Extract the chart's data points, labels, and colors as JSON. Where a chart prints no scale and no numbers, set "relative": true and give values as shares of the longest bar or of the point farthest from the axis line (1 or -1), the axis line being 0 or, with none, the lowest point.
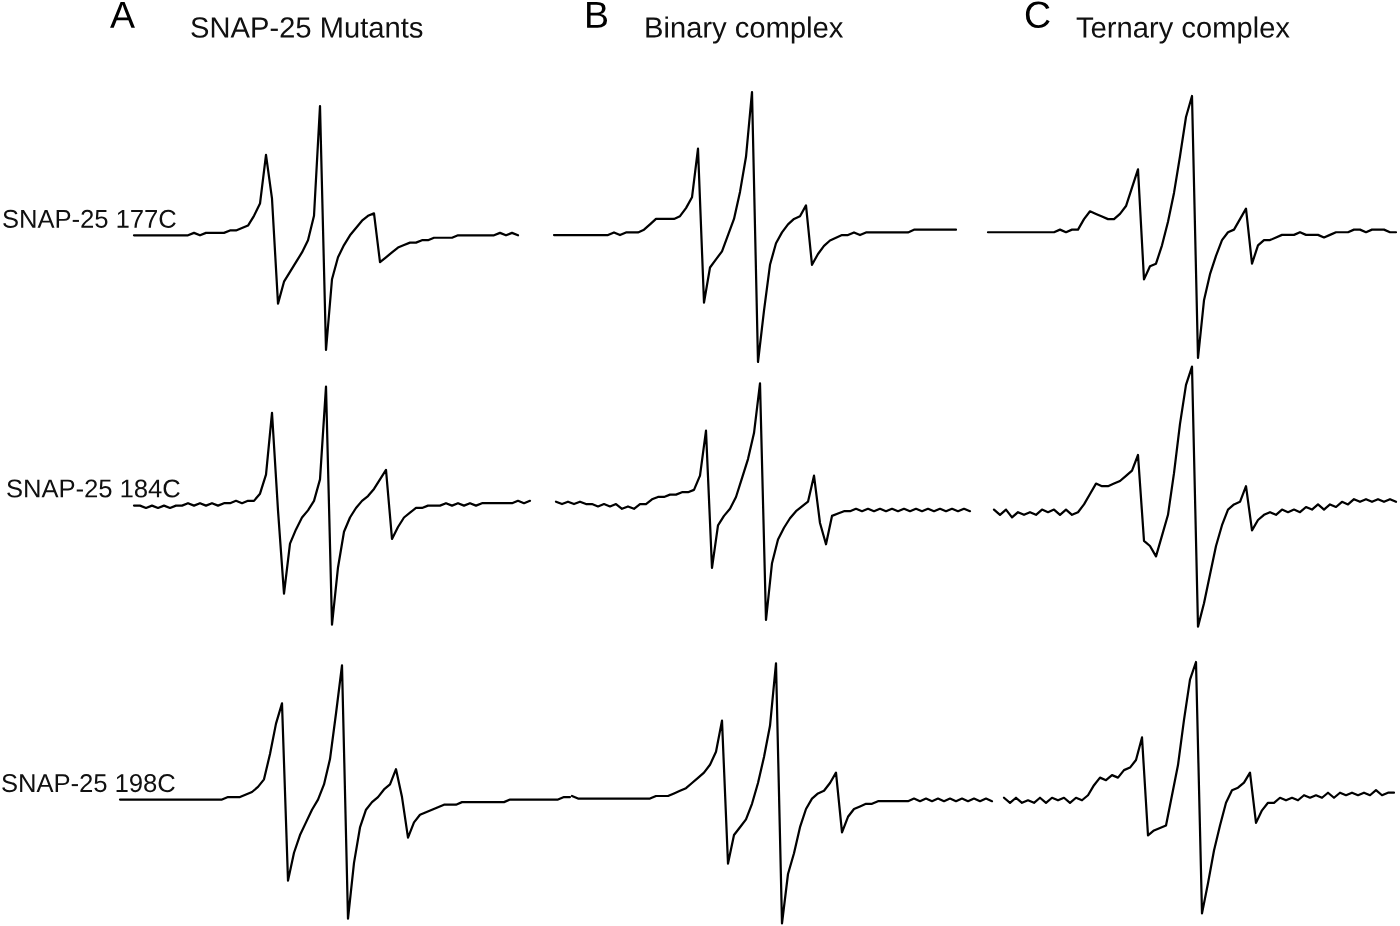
{
  "chart_data": [
    {
      "type": "line",
      "relative": true,
      "tick_labels": false,
      "title": "SNAP-25 Mutants",
      "annotations": [
        "A"
      ],
      "ylabel": "SNAP-25 177C",
      "color": "#000000",
      "categories": [
        null,
        null,
        null,
        null,
        null,
        null,
        null,
        null,
        null,
        null,
        null,
        null,
        null,
        null,
        null,
        null,
        null,
        null,
        null,
        null,
        null,
        null,
        null,
        null,
        null,
        null,
        null,
        null,
        null,
        null,
        null,
        null,
        null,
        null,
        null,
        null,
        null,
        null,
        null,
        null,
        null,
        null,
        null,
        null,
        null,
        null,
        null,
        null,
        null,
        null,
        null,
        null,
        null,
        null,
        null,
        null,
        null,
        null,
        null,
        null,
        null,
        null,
        null,
        null,
        null
      ],
      "values": [
        0.47,
        0.47,
        0.47,
        0.47,
        0.47,
        0.47,
        0.47,
        0.47,
        0.47,
        0.47,
        0.48,
        0.47,
        0.48,
        0.48,
        0.48,
        0.48,
        0.49,
        0.49,
        0.5,
        0.51,
        0.55,
        0.6,
        0.8,
        0.62,
        0.19,
        0.28,
        0.32,
        0.36,
        0.4,
        0.45,
        0.55,
        1.0,
        0.0,
        0.29,
        0.38,
        0.43,
        0.47,
        0.5,
        0.53,
        0.55,
        0.56,
        0.36,
        0.38,
        0.4,
        0.42,
        0.43,
        0.44,
        0.44,
        0.45,
        0.45,
        0.46,
        0.46,
        0.46,
        0.46,
        0.47,
        0.47,
        0.47,
        0.47,
        0.47,
        0.47,
        0.47,
        0.48,
        0.47,
        0.48,
        0.47
      ]
    },
    {
      "type": "line",
      "relative": true,
      "tick_labels": false,
      "title": "Binary complex",
      "annotations": [
        "B"
      ],
      "color": "#000000",
      "categories": [
        null,
        null,
        null,
        null,
        null,
        null,
        null,
        null,
        null,
        null,
        null,
        null,
        null,
        null,
        null,
        null,
        null,
        null,
        null,
        null,
        null,
        null,
        null,
        null,
        null,
        null,
        null,
        null,
        null,
        null,
        null,
        null,
        null,
        null,
        null,
        null,
        null,
        null,
        null,
        null,
        null,
        null,
        null,
        null,
        null,
        null,
        null,
        null,
        null,
        null,
        null,
        null,
        null,
        null,
        null,
        null,
        null,
        null,
        null,
        null,
        null,
        null,
        null,
        null,
        null,
        null,
        null,
        null
      ],
      "values": [
        0.47,
        0.47,
        0.47,
        0.47,
        0.47,
        0.47,
        0.47,
        0.47,
        0.47,
        0.47,
        0.48,
        0.47,
        0.48,
        0.48,
        0.48,
        0.49,
        0.51,
        0.53,
        0.53,
        0.53,
        0.53,
        0.54,
        0.57,
        0.61,
        0.79,
        0.22,
        0.35,
        0.38,
        0.41,
        0.47,
        0.53,
        0.63,
        0.76,
        1.0,
        0.0,
        0.19,
        0.36,
        0.44,
        0.48,
        0.51,
        0.53,
        0.54,
        0.58,
        0.36,
        0.4,
        0.43,
        0.45,
        0.46,
        0.47,
        0.47,
        0.48,
        0.47,
        0.48,
        0.48,
        0.48,
        0.48,
        0.48,
        0.48,
        0.48,
        0.48,
        0.49,
        0.49,
        0.49,
        0.49,
        0.49,
        0.49,
        0.49,
        0.49
      ]
    },
    {
      "type": "line",
      "relative": true,
      "tick_labels": false,
      "title": "Ternary complex",
      "annotations": [
        "C"
      ],
      "color": "#000000",
      "categories": [
        null,
        null,
        null,
        null,
        null,
        null,
        null,
        null,
        null,
        null,
        null,
        null,
        null,
        null,
        null,
        null,
        null,
        null,
        null,
        null,
        null,
        null,
        null,
        null,
        null,
        null,
        null,
        null,
        null,
        null,
        null,
        null,
        null,
        null,
        null,
        null,
        null,
        null,
        null,
        null,
        null,
        null,
        null,
        null,
        null,
        null,
        null,
        null,
        null,
        null,
        null,
        null,
        null,
        null,
        null,
        null,
        null,
        null,
        null,
        null,
        null,
        null,
        null,
        null,
        null,
        null,
        null,
        null,
        null
      ],
      "values": [
        0.48,
        0.48,
        0.48,
        0.48,
        0.48,
        0.48,
        0.48,
        0.48,
        0.48,
        0.48,
        0.48,
        0.48,
        0.49,
        0.48,
        0.49,
        0.49,
        0.53,
        0.56,
        0.55,
        0.54,
        0.53,
        0.53,
        0.55,
        0.58,
        0.65,
        0.72,
        0.3,
        0.35,
        0.36,
        0.43,
        0.52,
        0.63,
        0.77,
        0.92,
        1.0,
        0.0,
        0.22,
        0.32,
        0.39,
        0.45,
        0.48,
        0.49,
        0.53,
        0.57,
        0.36,
        0.43,
        0.45,
        0.45,
        0.46,
        0.47,
        0.47,
        0.47,
        0.48,
        0.47,
        0.47,
        0.47,
        0.46,
        0.47,
        0.48,
        0.48,
        0.48,
        0.49,
        0.49,
        0.48,
        0.49,
        0.49,
        0.49,
        0.48,
        0.48
      ]
    },
    {
      "type": "line",
      "relative": true,
      "tick_labels": false,
      "ylabel": "SNAP-25 184C",
      "color": "#000000",
      "categories": [
        null,
        null,
        null,
        null,
        null,
        null,
        null,
        null,
        null,
        null,
        null,
        null,
        null,
        null,
        null,
        null,
        null,
        null,
        null,
        null,
        null,
        null,
        null,
        null,
        null,
        null,
        null,
        null,
        null,
        null,
        null,
        null,
        null,
        null,
        null,
        null,
        null,
        null,
        null,
        null,
        null,
        null,
        null,
        null,
        null,
        null,
        null,
        null,
        null,
        null,
        null,
        null,
        null,
        null,
        null,
        null,
        null,
        null,
        null,
        null,
        null,
        null,
        null,
        null,
        null,
        null,
        null
      ],
      "values": [
        0.5,
        0.5,
        0.49,
        0.5,
        0.49,
        0.5,
        0.49,
        0.5,
        0.5,
        0.51,
        0.5,
        0.51,
        0.5,
        0.51,
        0.5,
        0.51,
        0.51,
        0.52,
        0.51,
        0.52,
        0.52,
        0.55,
        0.63,
        0.89,
        0.48,
        0.13,
        0.34,
        0.4,
        0.45,
        0.48,
        0.52,
        0.61,
        1.0,
        0.0,
        0.24,
        0.39,
        0.45,
        0.49,
        0.52,
        0.54,
        0.57,
        0.61,
        0.65,
        0.36,
        0.41,
        0.45,
        0.47,
        0.49,
        0.49,
        0.5,
        0.5,
        0.5,
        0.51,
        0.5,
        0.51,
        0.5,
        0.51,
        0.5,
        0.51,
        0.51,
        0.51,
        0.51,
        0.51,
        0.51,
        0.52,
        0.51,
        0.52
      ]
    },
    {
      "type": "line",
      "relative": true,
      "tick_labels": false,
      "color": "#000000",
      "categories": [
        null,
        null,
        null,
        null,
        null,
        null,
        null,
        null,
        null,
        null,
        null,
        null,
        null,
        null,
        null,
        null,
        null,
        null,
        null,
        null,
        null,
        null,
        null,
        null,
        null,
        null,
        null,
        null,
        null,
        null,
        null,
        null,
        null,
        null,
        null,
        null,
        null,
        null,
        null,
        null,
        null,
        null,
        null,
        null,
        null,
        null,
        null,
        null,
        null,
        null,
        null,
        null,
        null,
        null,
        null,
        null,
        null,
        null,
        null,
        null,
        null,
        null,
        null,
        null,
        null,
        null,
        null,
        null,
        null,
        null
      ],
      "values": [
        0.5,
        0.49,
        0.5,
        0.49,
        0.5,
        0.49,
        0.49,
        0.48,
        0.49,
        0.48,
        0.49,
        0.47,
        0.48,
        0.47,
        0.49,
        0.49,
        0.51,
        0.52,
        0.52,
        0.53,
        0.53,
        0.54,
        0.54,
        0.55,
        0.61,
        0.8,
        0.22,
        0.4,
        0.44,
        0.47,
        0.52,
        0.6,
        0.68,
        0.79,
        1.0,
        0.0,
        0.24,
        0.34,
        0.39,
        0.43,
        0.46,
        0.48,
        0.5,
        0.61,
        0.41,
        0.32,
        0.44,
        0.45,
        0.46,
        0.46,
        0.47,
        0.46,
        0.47,
        0.46,
        0.47,
        0.46,
        0.47,
        0.46,
        0.47,
        0.46,
        0.47,
        0.46,
        0.47,
        0.46,
        0.47,
        0.46,
        0.47,
        0.46,
        0.47,
        0.46
      ]
    },
    {
      "type": "line",
      "relative": true,
      "tick_labels": false,
      "color": "#000000",
      "categories": [
        null,
        null,
        null,
        null,
        null,
        null,
        null,
        null,
        null,
        null,
        null,
        null,
        null,
        null,
        null,
        null,
        null,
        null,
        null,
        null,
        null,
        null,
        null,
        null,
        null,
        null,
        null,
        null,
        null,
        null,
        null,
        null,
        null,
        null,
        null,
        null,
        null,
        null,
        null,
        null,
        null,
        null,
        null,
        null,
        null,
        null,
        null,
        null,
        null,
        null,
        null,
        null,
        null,
        null,
        null,
        null,
        null,
        null,
        null,
        null,
        null,
        null,
        null,
        null,
        null,
        null,
        null,
        null
      ],
      "values": [
        0.45,
        0.43,
        0.45,
        0.42,
        0.44,
        0.43,
        0.44,
        0.43,
        0.45,
        0.44,
        0.45,
        0.43,
        0.45,
        0.43,
        0.44,
        0.47,
        0.51,
        0.55,
        0.54,
        0.54,
        0.55,
        0.56,
        0.58,
        0.6,
        0.66,
        0.33,
        0.31,
        0.27,
        0.35,
        0.43,
        0.59,
        0.78,
        0.93,
        1.0,
        0.0,
        0.09,
        0.2,
        0.31,
        0.39,
        0.45,
        0.47,
        0.48,
        0.54,
        0.37,
        0.41,
        0.43,
        0.44,
        0.43,
        0.45,
        0.44,
        0.45,
        0.44,
        0.46,
        0.45,
        0.47,
        0.45,
        0.47,
        0.46,
        0.48,
        0.47,
        0.49,
        0.48,
        0.49,
        0.48,
        0.49,
        0.48,
        0.49,
        0.48
      ]
    },
    {
      "type": "line",
      "relative": true,
      "tick_labels": false,
      "ylabel": "SNAP-25 198C",
      "color": "#000000",
      "categories": [
        null,
        null,
        null,
        null,
        null,
        null,
        null,
        null,
        null,
        null,
        null,
        null,
        null,
        null,
        null,
        null,
        null,
        null,
        null,
        null,
        null,
        null,
        null,
        null,
        null,
        null,
        null,
        null,
        null,
        null,
        null,
        null,
        null,
        null,
        null,
        null,
        null,
        null,
        null,
        null,
        null,
        null,
        null,
        null,
        null,
        null,
        null,
        null,
        null,
        null,
        null,
        null,
        null,
        null,
        null,
        null,
        null,
        null,
        null,
        null,
        null,
        null,
        null,
        null,
        null,
        null,
        null,
        null,
        null,
        null,
        null,
        null,
        null,
        null,
        null,
        null
      ],
      "values": [
        0.47,
        0.47,
        0.47,
        0.47,
        0.47,
        0.47,
        0.47,
        0.47,
        0.47,
        0.47,
        0.47,
        0.47,
        0.47,
        0.47,
        0.47,
        0.47,
        0.47,
        0.47,
        0.48,
        0.48,
        0.48,
        0.49,
        0.5,
        0.52,
        0.55,
        0.65,
        0.77,
        0.85,
        0.15,
        0.26,
        0.33,
        0.38,
        0.43,
        0.47,
        0.53,
        0.63,
        0.81,
        1.0,
        0.0,
        0.22,
        0.36,
        0.43,
        0.46,
        0.48,
        0.51,
        0.53,
        0.59,
        0.48,
        0.32,
        0.38,
        0.41,
        0.42,
        0.43,
        0.44,
        0.45,
        0.45,
        0.45,
        0.46,
        0.46,
        0.46,
        0.46,
        0.46,
        0.46,
        0.46,
        0.46,
        0.47,
        0.47,
        0.47,
        0.47,
        0.47,
        0.47,
        0.47,
        0.47,
        0.47,
        0.48,
        0.48
      ]
    },
    {
      "type": "line",
      "relative": true,
      "tick_labels": false,
      "color": "#000000",
      "categories": [
        null,
        null,
        null,
        null,
        null,
        null,
        null,
        null,
        null,
        null,
        null,
        null,
        null,
        null,
        null,
        null,
        null,
        null,
        null,
        null,
        null,
        null,
        null,
        null,
        null,
        null,
        null,
        null,
        null,
        null,
        null,
        null,
        null,
        null,
        null,
        null,
        null,
        null,
        null,
        null,
        null,
        null,
        null,
        null,
        null,
        null,
        null,
        null,
        null,
        null,
        null,
        null,
        null,
        null,
        null,
        null,
        null,
        null,
        null,
        null,
        null,
        null,
        null,
        null,
        null,
        null,
        null,
        null,
        null,
        null,
        null
      ],
      "values": [
        0.49,
        0.48,
        0.48,
        0.48,
        0.48,
        0.48,
        0.48,
        0.48,
        0.48,
        0.48,
        0.48,
        0.48,
        0.48,
        0.48,
        0.49,
        0.49,
        0.49,
        0.5,
        0.51,
        0.52,
        0.54,
        0.56,
        0.58,
        0.61,
        0.66,
        0.78,
        0.23,
        0.34,
        0.37,
        0.4,
        0.46,
        0.54,
        0.64,
        0.76,
        1.0,
        0.0,
        0.19,
        0.27,
        0.37,
        0.44,
        0.48,
        0.5,
        0.51,
        0.54,
        0.58,
        0.35,
        0.41,
        0.44,
        0.45,
        0.46,
        0.46,
        0.47,
        0.47,
        0.47,
        0.47,
        0.47,
        0.47,
        0.48,
        0.47,
        0.48,
        0.47,
        0.48,
        0.47,
        0.48,
        0.47,
        0.48,
        0.47,
        0.48,
        0.47,
        0.48,
        0.47
      ]
    },
    {
      "type": "line",
      "relative": true,
      "tick_labels": false,
      "color": "#000000",
      "categories": [
        null,
        null,
        null,
        null,
        null,
        null,
        null,
        null,
        null,
        null,
        null,
        null,
        null,
        null,
        null,
        null,
        null,
        null,
        null,
        null,
        null,
        null,
        null,
        null,
        null,
        null,
        null,
        null,
        null,
        null,
        null,
        null,
        null,
        null,
        null,
        null,
        null,
        null,
        null,
        null,
        null,
        null,
        null,
        null,
        null,
        null,
        null,
        null,
        null,
        null,
        null,
        null,
        null,
        null,
        null,
        null,
        null,
        null,
        null,
        null,
        null,
        null,
        null,
        null,
        null,
        null
      ],
      "values": [
        0.46,
        0.44,
        0.46,
        0.44,
        0.45,
        0.44,
        0.46,
        0.44,
        0.46,
        0.45,
        0.46,
        0.44,
        0.46,
        0.45,
        0.47,
        0.51,
        0.54,
        0.53,
        0.55,
        0.54,
        0.57,
        0.58,
        0.61,
        0.7,
        0.31,
        0.33,
        0.34,
        0.35,
        0.47,
        0.59,
        0.77,
        0.93,
        1.0,
        0.0,
        0.12,
        0.25,
        0.35,
        0.44,
        0.49,
        0.5,
        0.52,
        0.56,
        0.36,
        0.41,
        0.44,
        0.44,
        0.46,
        0.45,
        0.46,
        0.45,
        0.47,
        0.46,
        0.47,
        0.46,
        0.48,
        0.46,
        0.48,
        0.47,
        0.48,
        0.47,
        0.48,
        0.47,
        0.49,
        0.47,
        0.48,
        0.48
      ]
    }
  ]
}
